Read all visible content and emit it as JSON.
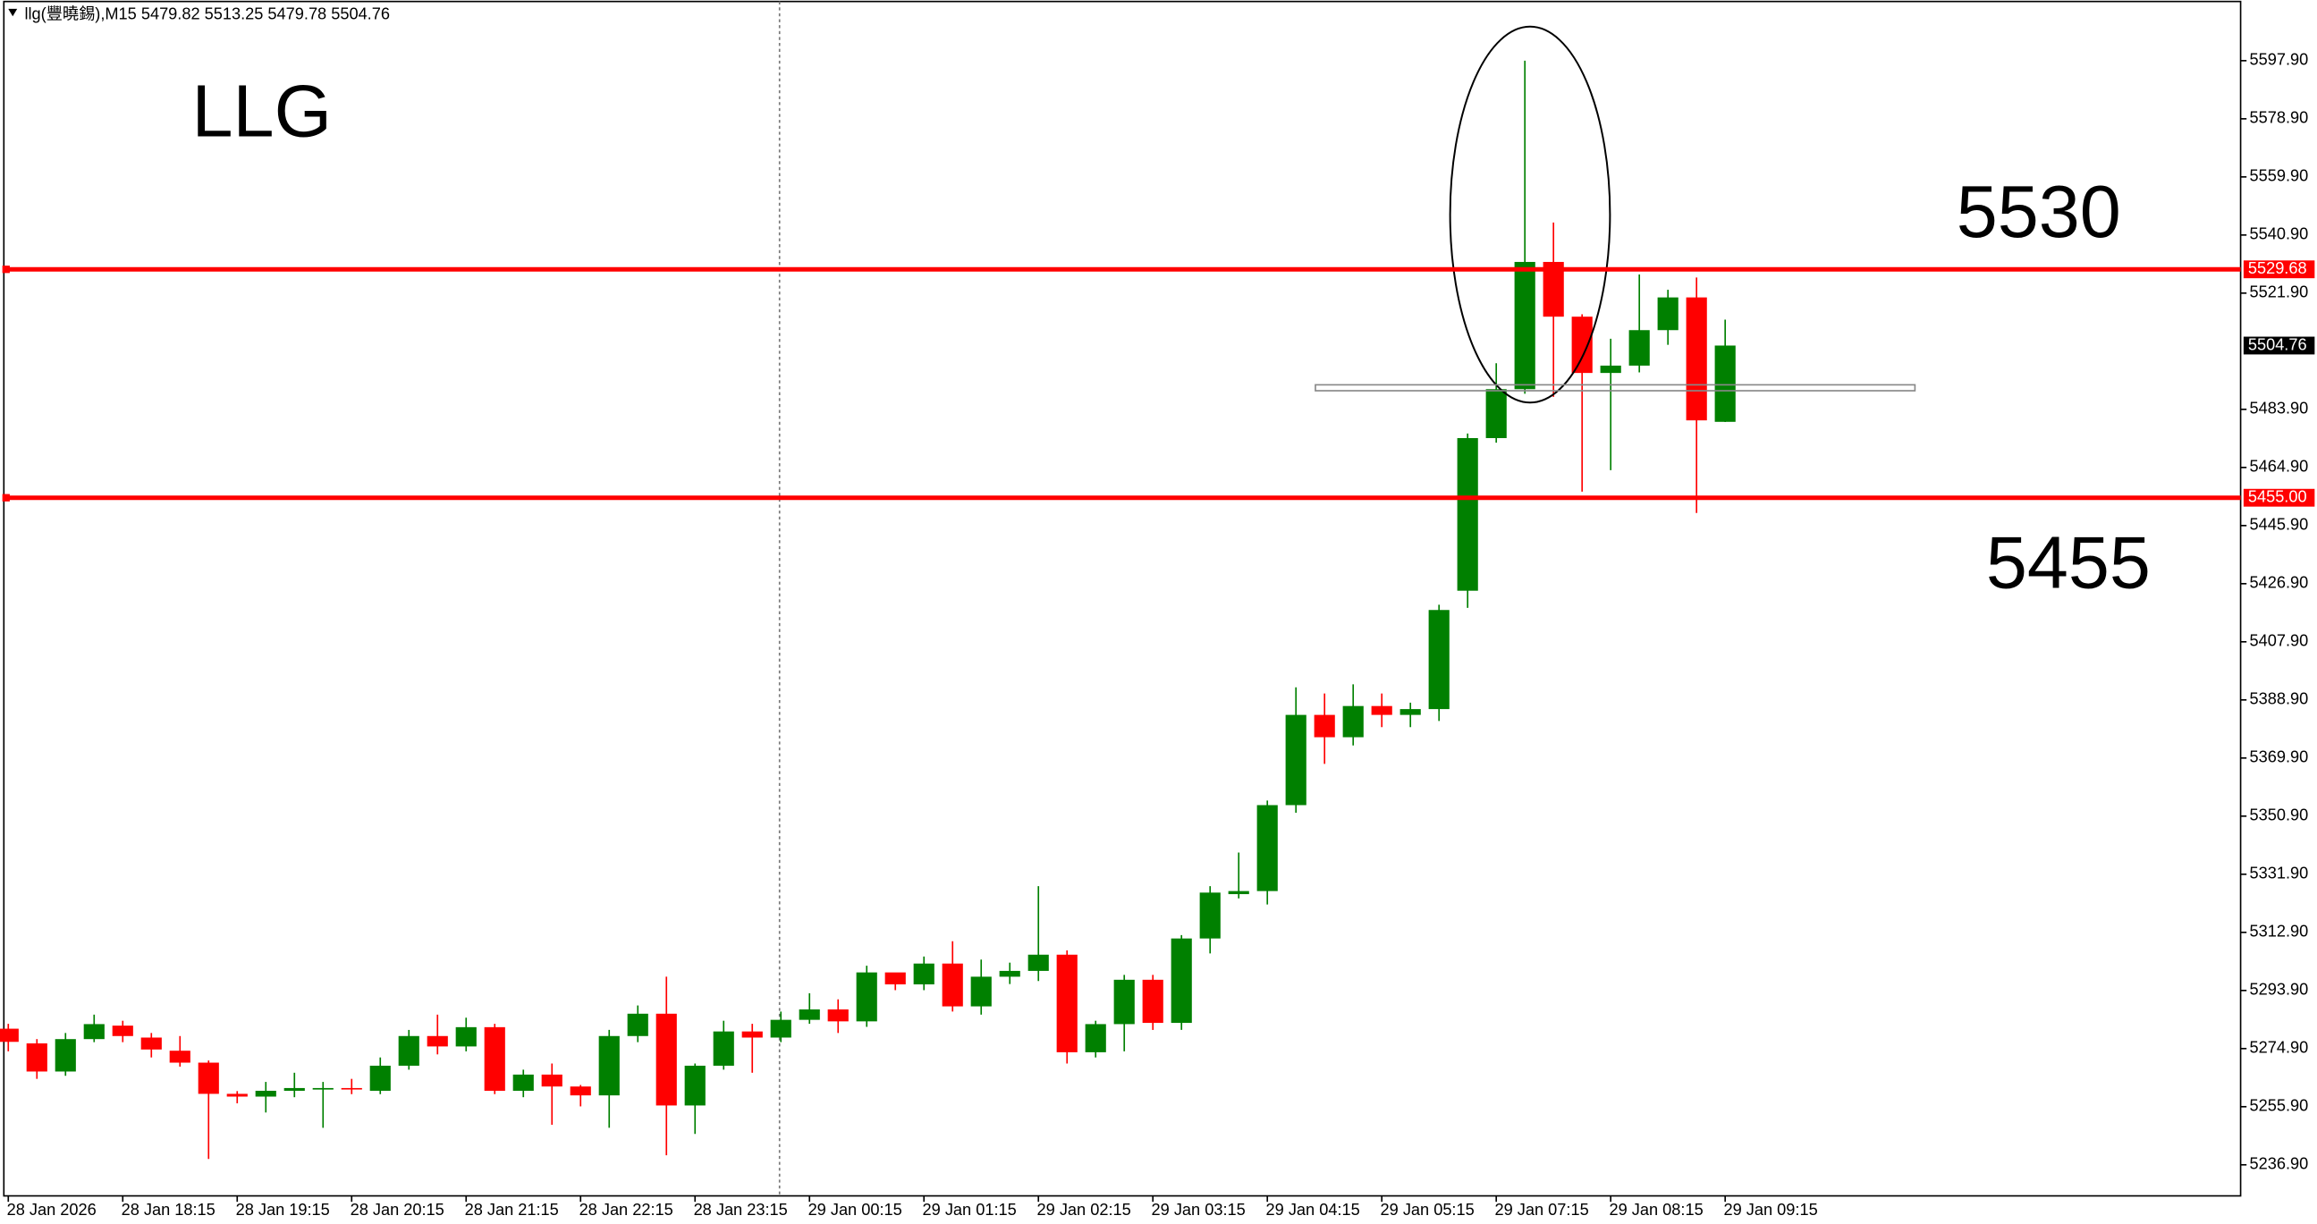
{
  "chart_data": {
    "type": "candlestick",
    "header": "llg(豐曉錫),M15  5479.82 5513.25 5479.78 5504.76",
    "categories": [
      "28 Jan 2026",
      null,
      null,
      null,
      "28 Jan 18:15",
      null,
      null,
      null,
      "28 Jan 19:15",
      null,
      null,
      null,
      "28 Jan 20:15",
      null,
      null,
      null,
      "28 Jan 21:15",
      null,
      null,
      null,
      "28 Jan 22:15",
      null,
      null,
      null,
      "28 Jan 23:15",
      null,
      null,
      null,
      "29 Jan 00:15",
      null,
      null,
      null,
      "29 Jan 01:15",
      null,
      null,
      null,
      "29 Jan 02:15",
      null,
      null,
      null,
      "29 Jan 03:15",
      null,
      null,
      null,
      "29 Jan 04:15",
      null,
      null,
      null,
      "29 Jan 05:15",
      null,
      null,
      null,
      "29 Jan 07:15",
      null,
      null,
      null,
      "29 Jan 08:15",
      null,
      null,
      null,
      "29 Jan 09:15"
    ],
    "open": [
      5281.4,
      5276.6,
      5267.4,
      5278,
      5282.4,
      5278.5,
      5274.2,
      5270.3,
      5260.1,
      5259.2,
      5261.1,
      5261.5,
      5262,
      5261.1,
      5269.3,
      5279,
      5275.6,
      5281.9,
      5261.1,
      5266.4,
      5262.5,
      5259.6,
      5279,
      5286.3,
      5256.3,
      5269.3,
      5280.5,
      5278.5,
      5284.3,
      5287.7,
      5283.8,
      5299.8,
      5295.9,
      5302.7,
      5288.7,
      5298.4,
      5300.3,
      5305.6,
      5273.7,
      5282.9,
      5297.4,
      5283.3,
      5310.9,
      5325.4,
      5326.4,
      5354.5,
      5384,
      5376.7,
      5386.9,
      5384,
      5385.9,
      5424.6,
      5474.5,
      5490.5,
      5532.1,
      5514.2,
      5495.8,
      5498.2,
      5509.8,
      5520.5,
      5479.82
    ],
    "high": [
      5283,
      5278,
      5280,
      5286,
      5284,
      5280,
      5279,
      5271,
      5261,
      5264,
      5267,
      5264,
      5265,
      5272,
      5281,
      5286,
      5285,
      5283,
      5268,
      5270,
      5263,
      5281,
      5289,
      5298.4,
      5270,
      5284,
      5283,
      5287,
      5293,
      5291,
      5302,
      5299,
      5305,
      5310,
      5304,
      5303,
      5328,
      5307,
      5284,
      5299,
      5299,
      5312,
      5328,
      5339,
      5356,
      5393,
      5391,
      5394,
      5391,
      5388,
      5420,
      5476,
      5499,
      5597.9,
      5545,
      5515,
      5507,
      5528,
      5523,
      5527,
      5513.25
    ],
    "low": [
      5274,
      5265,
      5266,
      5277,
      5277,
      5272,
      5269,
      5238.8,
      5257,
      5254,
      5259,
      5249,
      5260,
      5260,
      5268,
      5273,
      5274,
      5260,
      5259,
      5250,
      5256,
      5249,
      5277,
      5240,
      5247,
      5268,
      5267,
      5277,
      5283,
      5280,
      5282,
      5294,
      5294,
      5287,
      5286,
      5296,
      5297,
      5270,
      5272,
      5274,
      5281,
      5281,
      5306,
      5324,
      5322,
      5352,
      5368,
      5374,
      5380,
      5380,
      5382,
      5419,
      5473,
      5489,
      5488,
      5457,
      5464,
      5496,
      5505,
      5450,
      5479.78
    ],
    "close": [
      5277.1,
      5267.4,
      5278,
      5282.9,
      5279,
      5274.6,
      5270.3,
      5260.1,
      5259.2,
      5261.1,
      5262,
      5262,
      5261.8,
      5269.3,
      5279,
      5275.6,
      5281.9,
      5261.1,
      5266.4,
      5262.5,
      5259.6,
      5279,
      5286.3,
      5256.3,
      5269.3,
      5280.5,
      5278.5,
      5284.3,
      5287.7,
      5283.8,
      5299.8,
      5295.9,
      5302.7,
      5288.7,
      5298.4,
      5300.3,
      5305.6,
      5273.7,
      5282.9,
      5297.4,
      5283.3,
      5310.9,
      5325.9,
      5326.4,
      5354.5,
      5384,
      5376.7,
      5386.9,
      5384,
      5385.9,
      5418.3,
      5474.5,
      5490.5,
      5532.1,
      5514.2,
      5495.8,
      5498.2,
      5509.8,
      5520.5,
      5480.3,
      5504.76
    ],
    "up_color": "#008000",
    "down_color": "#ff0000",
    "ylim": [
      5226.74,
      5617.74
    ],
    "yticks": [
      {
        "value": 5597.9,
        "label": "5597.90"
      },
      {
        "value": 5578.9,
        "label": "5578.90"
      },
      {
        "value": 5559.9,
        "label": "5559.90"
      },
      {
        "value": 5540.9,
        "label": "5540.90"
      },
      {
        "value": 5521.9,
        "label": "5521.90"
      },
      {
        "value": 5483.9,
        "label": "5483.90"
      },
      {
        "value": 5464.9,
        "label": "5464.90"
      },
      {
        "value": 5445.9,
        "label": "5445.90"
      },
      {
        "value": 5426.9,
        "label": "5426.90"
      },
      {
        "value": 5407.9,
        "label": "5407.90"
      },
      {
        "value": 5388.9,
        "label": "5388.90"
      },
      {
        "value": 5369.9,
        "label": "5369.90"
      },
      {
        "value": 5350.9,
        "label": "5350.90"
      },
      {
        "value": 5331.9,
        "label": "5331.90"
      },
      {
        "value": 5312.9,
        "label": "5312.90"
      },
      {
        "value": 5293.9,
        "label": "5293.90"
      },
      {
        "value": 5274.9,
        "label": "5274.90"
      },
      {
        "value": 5255.9,
        "label": "5255.90"
      },
      {
        "value": 5236.9,
        "label": "5236.90"
      }
    ],
    "hlines": [
      {
        "value": 5529.68,
        "label": "5529.68",
        "color": "#ff0000"
      },
      {
        "value": 5455,
        "label": "5455.00",
        "color": "#ff0000"
      }
    ],
    "annotations": [
      "LLG",
      "5530",
      "5455"
    ],
    "grid": false
  }
}
